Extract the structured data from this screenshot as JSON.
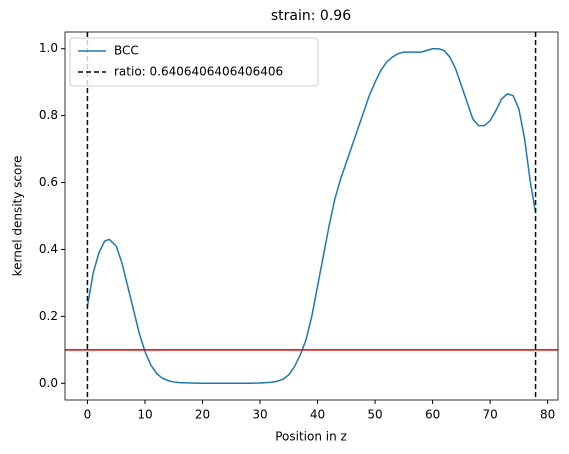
{
  "chart_data": {
    "type": "line",
    "title": "strain: 0.96",
    "xlabel": "Position in z",
    "ylabel": "kernel density score",
    "x": [
      0,
      1,
      2,
      3,
      3.8,
      5,
      6,
      7,
      8,
      9,
      10,
      11,
      12,
      13,
      14,
      15,
      16,
      18,
      20,
      22,
      24,
      26,
      28,
      30,
      32,
      33,
      34,
      35,
      36,
      37,
      38,
      39,
      40,
      41,
      42,
      43,
      44,
      45,
      46,
      47,
      48,
      49,
      50,
      51,
      52,
      53,
      54,
      55,
      56,
      57,
      58,
      59,
      60,
      61,
      62,
      63,
      64,
      65,
      66,
      67,
      68,
      69,
      70,
      71,
      72,
      73,
      74,
      75,
      76,
      77,
      77.9
    ],
    "series": [
      {
        "name": "BCC",
        "color": "#1f77b4",
        "values": [
          0.23,
          0.33,
          0.39,
          0.425,
          0.43,
          0.41,
          0.36,
          0.29,
          0.22,
          0.15,
          0.095,
          0.055,
          0.03,
          0.015,
          0.008,
          0.004,
          0.002,
          0.001,
          0,
          0,
          0,
          0,
          0,
          0.001,
          0.003,
          0.006,
          0.012,
          0.025,
          0.05,
          0.085,
          0.13,
          0.2,
          0.29,
          0.38,
          0.47,
          0.55,
          0.61,
          0.66,
          0.71,
          0.76,
          0.81,
          0.86,
          0.9,
          0.935,
          0.96,
          0.975,
          0.985,
          0.99,
          0.99,
          0.99,
          0.99,
          0.995,
          1.0,
          1.0,
          0.995,
          0.975,
          0.94,
          0.89,
          0.84,
          0.79,
          0.77,
          0.77,
          0.785,
          0.815,
          0.85,
          0.865,
          0.86,
          0.82,
          0.73,
          0.6,
          0.51
        ]
      }
    ],
    "vlines": {
      "name": "ratio: 0.6406406406406406",
      "color": "#000000",
      "values": [
        0,
        77.9
      ]
    },
    "hline": {
      "color": "#e00000",
      "value": 0.1
    },
    "xlim": [
      -3.9,
      81.8
    ],
    "ylim": [
      -0.05,
      1.05
    ],
    "xticks": [
      0,
      10,
      20,
      30,
      40,
      50,
      60,
      70,
      80
    ],
    "yticks": [
      {
        "value": 0,
        "label": "0.0"
      },
      0.2,
      0.4,
      0.6,
      0.8,
      {
        "value": 1,
        "label": "1.0"
      }
    ],
    "legend": "upper left"
  }
}
